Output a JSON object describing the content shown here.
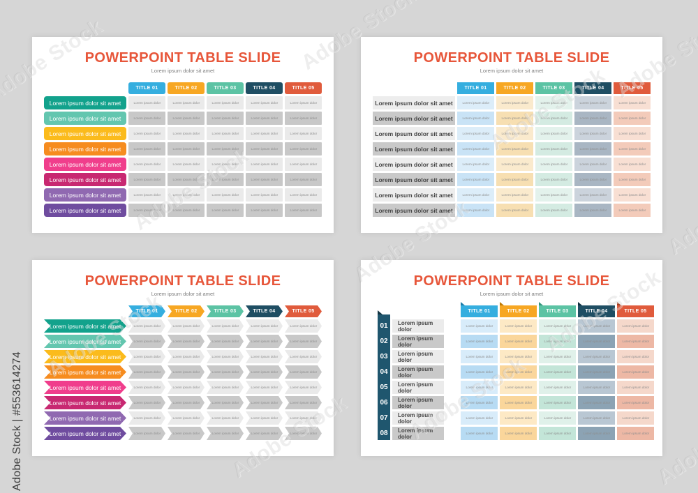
{
  "watermark": {
    "tile_text": "Adobe Stock",
    "id_text": "Adobe Stock | #553614274"
  },
  "shared": {
    "title": "POWERPOINT TABLE SLIDE",
    "subtitle": "Lorem ipsum dolor sit amet",
    "cell_text": "Lorem ipsum dolor",
    "headers": [
      {
        "label": "TITLE 01",
        "color": "#35AEDF",
        "fold": "#1C7CA9"
      },
      {
        "label": "TITLE 02",
        "color": "#F7A723",
        "fold": "#BE7A06"
      },
      {
        "label": "TITLE 03",
        "color": "#5CC3A4",
        "fold": "#35947B"
      },
      {
        "label": "TITLE 04",
        "color": "#1F4E63",
        "fold": "#0E2F3F"
      },
      {
        "label": "TITLE 05",
        "color": "#E05B3C",
        "fold": "#A93E1F"
      }
    ]
  },
  "slides": [
    {
      "id": "slide-1",
      "variant": "rounded",
      "row_label": "Lorem ipsum dolor sit amet",
      "label_colors": [
        "#12A28C",
        "#63C6AF",
        "#FBBB1C",
        "#F68C1F",
        "#F03E8C",
        "#C82871",
        "#9069B1",
        "#6F4C9F"
      ],
      "cell_light": "#EAEAEA",
      "cell_dark": "#C8C8C8"
    },
    {
      "id": "slide-2",
      "variant": "flat",
      "row_label": "Lorem ipsum dolor sit amet",
      "label_light": "#EDEDED",
      "label_dark": "#C9C9C9",
      "col_tints": [
        [
          "#DCEDF9",
          "#C9E3F6"
        ],
        [
          "#FAEACD",
          "#F7DFB2"
        ],
        [
          "#E3F2EC",
          "#D4EBE2"
        ],
        [
          "#CBD3DC",
          "#A9B6C3"
        ],
        [
          "#F8DFD3",
          "#F3CBBA"
        ]
      ]
    },
    {
      "id": "slide-3",
      "variant": "arrow",
      "row_label": "Lorem ipsum dolor sit amet",
      "label_colors": [
        "#12A28C",
        "#63C6AF",
        "#FBBB1C",
        "#F68C1F",
        "#F03E8C",
        "#C82871",
        "#9069B1",
        "#6F4C9F"
      ],
      "cell_light": "#EAEAEA",
      "cell_dark": "#C8C8C8"
    },
    {
      "id": "slide-4",
      "variant": "numbered",
      "row_label": "Lorem ipsum dolor",
      "numbers": [
        "01",
        "02",
        "03",
        "04",
        "05",
        "06",
        "07",
        "08"
      ],
      "bar_color": "#1F566E",
      "label_light": "#EBEBEB",
      "label_dark": "#C9C9C9",
      "col_tints": [
        [
          "#D8ECFA",
          "#B7DBF3"
        ],
        [
          "#FDE9C5",
          "#FAD69B"
        ],
        [
          "#E0F1EA",
          "#C3E5D8"
        ],
        [
          "#B9C7D3",
          "#8CA3B4"
        ],
        [
          "#F5D8CB",
          "#EDB8A5"
        ]
      ]
    }
  ]
}
